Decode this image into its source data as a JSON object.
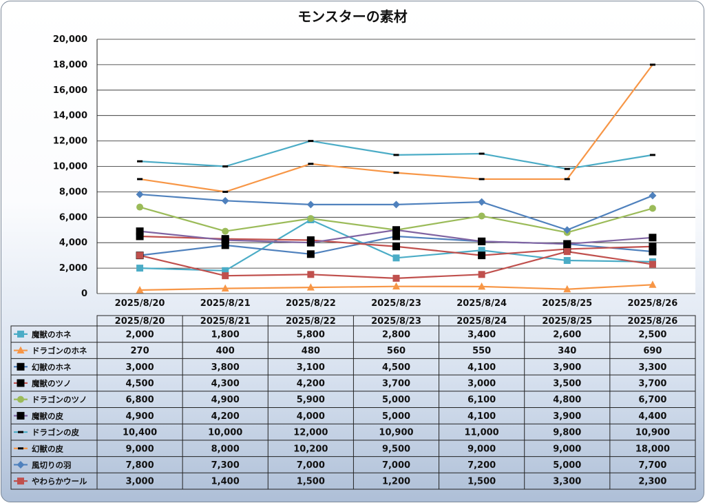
{
  "chart_data": {
    "type": "line",
    "title": "モンスターの素材",
    "xlabel": "",
    "ylabel": "",
    "ylim": [
      0,
      20000
    ],
    "yticks": [
      "0",
      "2,000",
      "4,000",
      "6,000",
      "8,000",
      "10,000",
      "12,000",
      "14,000",
      "16,000",
      "18,000",
      "20,000"
    ],
    "categories": [
      "2025/8/20",
      "2025/8/21",
      "2025/8/22",
      "2025/8/23",
      "2025/8/24",
      "2025/8/25",
      "2025/8/26"
    ],
    "grid": true,
    "legend": "data-table",
    "series": [
      {
        "name": "魔獣のホネ",
        "color": "#4bacc6",
        "marker": "square",
        "values": [
          2000,
          1800,
          5800,
          2800,
          3400,
          2600,
          2500
        ],
        "labels": [
          "2,000",
          "1,800",
          "5,800",
          "2,800",
          "3,400",
          "2,600",
          "2,500"
        ]
      },
      {
        "name": "ドラゴンのホネ",
        "color": "#f79646",
        "marker": "triangle",
        "values": [
          270,
          400,
          480,
          560,
          550,
          340,
          690
        ],
        "labels": [
          "270",
          "400",
          "480",
          "560",
          "550",
          "340",
          "690"
        ]
      },
      {
        "name": "幻獣のホネ",
        "color": "#4f81bd",
        "marker": "bigsquare",
        "values": [
          3000,
          3800,
          3100,
          4500,
          4100,
          3900,
          3300
        ],
        "labels": [
          "3,000",
          "3,800",
          "3,100",
          "4,500",
          "4,100",
          "3,900",
          "3,300"
        ]
      },
      {
        "name": "魔獣のツノ",
        "color": "#c0504d",
        "marker": "bigsquare",
        "values": [
          4500,
          4300,
          4200,
          3700,
          3000,
          3500,
          3700
        ],
        "labels": [
          "4,500",
          "4,300",
          "4,200",
          "3,700",
          "3,000",
          "3,500",
          "3,700"
        ]
      },
      {
        "name": "ドラゴンのツノ",
        "color": "#9bbb59",
        "marker": "circle",
        "values": [
          6800,
          4900,
          5900,
          5000,
          6100,
          4800,
          6700
        ],
        "labels": [
          "6,800",
          "4,900",
          "5,900",
          "5,000",
          "6,100",
          "4,800",
          "6,700"
        ]
      },
      {
        "name": "魔獣の皮",
        "color": "#8064a2",
        "marker": "bigsquare",
        "values": [
          4900,
          4200,
          4000,
          5000,
          4100,
          3900,
          4400
        ],
        "labels": [
          "4,900",
          "4,200",
          "4,000",
          "5,000",
          "4,100",
          "3,900",
          "4,400"
        ]
      },
      {
        "name": "ドラゴンの皮",
        "color": "#4bacc6",
        "marker": "dash",
        "values": [
          10400,
          10000,
          12000,
          10900,
          11000,
          9800,
          10900
        ],
        "labels": [
          "10,400",
          "10,000",
          "12,000",
          "10,900",
          "11,000",
          "9,800",
          "10,900"
        ]
      },
      {
        "name": "幻獣の皮",
        "color": "#f79646",
        "marker": "dash",
        "values": [
          9000,
          8000,
          10200,
          9500,
          9000,
          9000,
          18000
        ],
        "labels": [
          "9,000",
          "8,000",
          "10,200",
          "9,500",
          "9,000",
          "9,000",
          "18,000"
        ]
      },
      {
        "name": "風切りの羽",
        "color": "#4f81bd",
        "marker": "diamond",
        "values": [
          7800,
          7300,
          7000,
          7000,
          7200,
          5000,
          7700
        ],
        "labels": [
          "7,800",
          "7,300",
          "7,000",
          "7,000",
          "7,200",
          "5,000",
          "7,700"
        ]
      },
      {
        "name": "やわらかウール",
        "color": "#c0504d",
        "marker": "square",
        "values": [
          3000,
          1400,
          1500,
          1200,
          1500,
          3300,
          2300
        ],
        "labels": [
          "3,000",
          "1,400",
          "1,500",
          "1,200",
          "1,500",
          "3,300",
          "2,300"
        ]
      }
    ]
  }
}
